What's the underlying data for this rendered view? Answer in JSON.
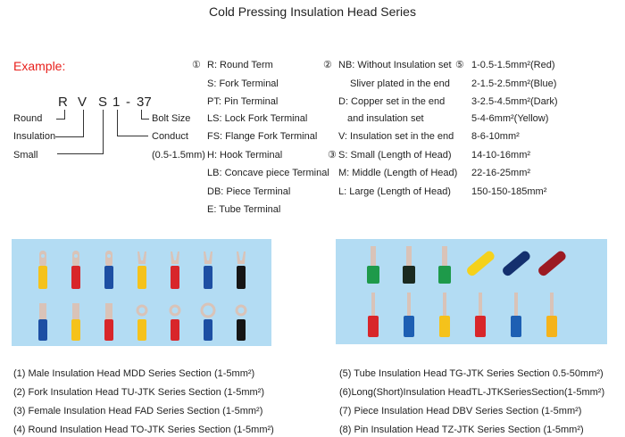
{
  "title": "Cold Pressing Insulation Head Series",
  "example": {
    "label": "Example:",
    "code_parts": [
      "R",
      "V",
      "S",
      "1",
      "-",
      "37"
    ],
    "left_labels": [
      "Round",
      "Insulation",
      "Small"
    ],
    "right_labels": [
      "Bolt Size",
      "Conduct",
      "(0.5-1.5mm)"
    ]
  },
  "section1": {
    "marker": "①",
    "items": [
      "R: Round Term",
      "S: Fork Terminal",
      "PT: Pin Terminal",
      "LS: Lock Fork Terminal",
      "FS: Flange Fork Terminal",
      "H: Hook Terminal",
      "LB: Concave piece Terminal",
      "DB: Piece Terminal",
      "E: Tube Terminal"
    ]
  },
  "section2": {
    "marker": "②",
    "items": [
      "NB: Without Insulation set",
      "Sliver plated in the end",
      "D: Copper set in the end",
      "and insulation set",
      "V: Insulation set in the end"
    ]
  },
  "section3": {
    "marker": "③",
    "items": [
      "S: Small (Length of Head)",
      "M: Middle (Length of Head)",
      "L: Large (Length of Head)"
    ]
  },
  "section5": {
    "marker": "⑤",
    "items": [
      "1-0.5-1.5mm²(Red)",
      "2-1.5-2.5mm²(Blue)",
      "3-2.5-4.5mm²(Dark)",
      "5-4-6mm²(Yellow)",
      "8-6-10mm²",
      "14-10-16mm²",
      "22-16-25mm²",
      "150-150-185mm²"
    ]
  },
  "photos": {
    "background": "#b3dcf3",
    "left_top": [
      "#f5c21b",
      "#d8262a",
      "#1d4fa3",
      "#f5c21b",
      "#d8262a",
      "#1d4fa3",
      "#151515"
    ],
    "left_bottom": [
      "#1d4fa3",
      "#f5c21b",
      "#d8262a",
      "#f5c21b",
      "#d8262a",
      "#1d4fa3",
      "#151515"
    ],
    "right_top": [
      "#1e9a4a",
      "#1a2a20",
      "#1e9a4a",
      "#f5d11b",
      "#14306e",
      "#9c1a22"
    ],
    "right_bottom": [
      "#d8262a",
      "#1d5fb3",
      "#f5c21b",
      "#d8262a",
      "#1d5fb3",
      "#f5b31b"
    ]
  },
  "captions_left": [
    "(1) Male Insulation Head MDD Series Section (1-5mm²)",
    "(2) Fork Insulation Head TU-JTK Series Section (1-5mm²)",
    "(3) Female Insulation Head FAD Series Section (1-5mm²)",
    "(4) Round Insulation Head TO-JTK Series Section (1-5mm²)"
  ],
  "captions_right": [
    "(5) Tube Insulation Head TG-JTK Series Section 0.5-50mm²)",
    "(6)Long(Short)Insulation HeadTL-JTKSeriesSection(1-5mm²)",
    "(7) Piece Insulation Head DBV Series Section (1-5mm²)",
    "(8) Pin Insulation Head TZ-JTK Series Section (1-5mm²)"
  ]
}
